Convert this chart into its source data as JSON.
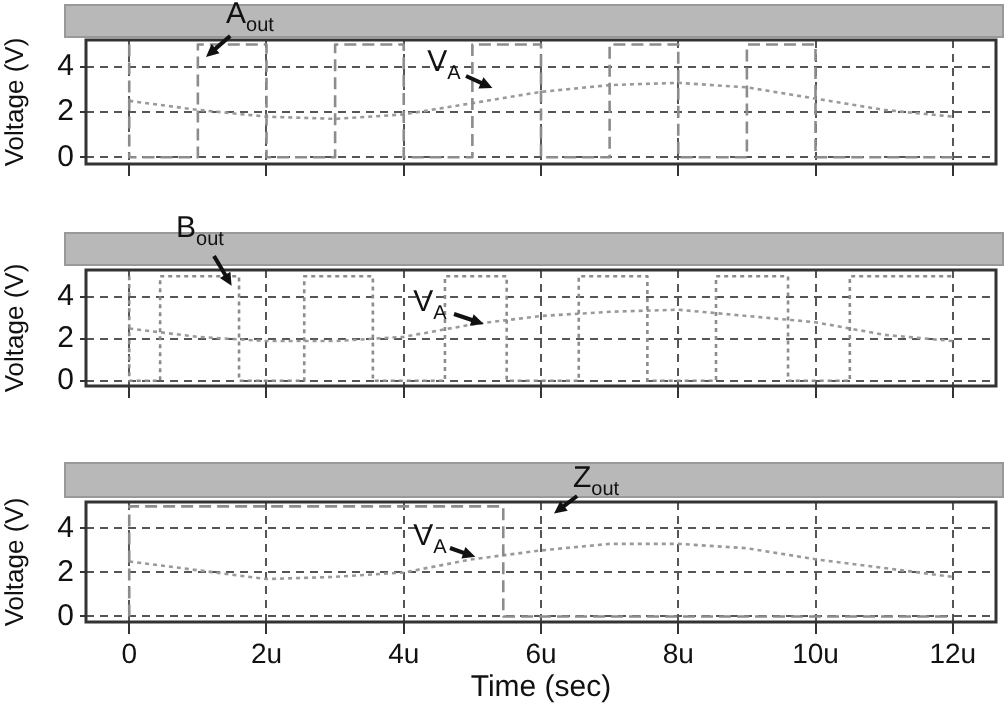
{
  "chart_data": [
    {
      "type": "line",
      "ylabel": "Voltage (V)",
      "xlim": [
        -0.63,
        12.63
      ],
      "ylim": [
        -0.3,
        5.2
      ],
      "tick_labels": "y",
      "grid": true,
      "xticks": [
        0,
        2,
        4,
        6,
        8,
        10,
        12
      ],
      "yticks": [
        0,
        2,
        4
      ],
      "series": [
        {
          "type": "step",
          "color": "#8c8c8c",
          "line_style": "dashed",
          "x": [
            0,
            1,
            2,
            3,
            4,
            5,
            6,
            7,
            8,
            9,
            10,
            11,
            12
          ],
          "values": [
            5,
            0,
            5,
            0,
            5,
            0,
            5,
            0,
            5,
            0,
            5,
            0,
            0
          ]
        },
        {
          "type": "line",
          "color": "#9a9a9a",
          "line_style": "dotted",
          "x": [
            0,
            1,
            2,
            3,
            4,
            5,
            6,
            7,
            8,
            9,
            10,
            11,
            12
          ],
          "values": [
            2.5,
            2.1,
            1.8,
            1.7,
            1.9,
            2.4,
            2.9,
            3.2,
            3.3,
            3.1,
            2.6,
            2.1,
            1.8
          ]
        }
      ],
      "annotations": [
        "A$_{out}$",
        "V$_{A}$"
      ]
    },
    {
      "type": "line",
      "ylabel": "Voltage (V)",
      "xlim": [
        -0.63,
        12.63
      ],
      "ylim": [
        -0.25,
        5.3
      ],
      "tick_labels": "y",
      "grid": true,
      "xticks": [
        0,
        2,
        4,
        6,
        8,
        10,
        12
      ],
      "yticks": [
        0,
        2,
        4
      ],
      "series": [
        {
          "type": "step",
          "color": "#8c8c8c",
          "line_style": "dotted",
          "x": [
            0,
            0.45,
            1.6,
            2.55,
            3.55,
            4.6,
            5.5,
            6.55,
            7.55,
            8.55,
            9.6,
            10.5,
            11.6,
            12
          ],
          "values": [
            5,
            0,
            5,
            0,
            5,
            0,
            5,
            0,
            5,
            0,
            5,
            0,
            5,
            5
          ]
        },
        {
          "type": "line",
          "color": "#9a9a9a",
          "line_style": "dotted",
          "x": [
            0,
            1,
            2,
            3,
            4,
            5,
            6,
            7,
            8,
            9,
            10,
            11,
            12
          ],
          "values": [
            2.5,
            2.1,
            1.9,
            1.9,
            2.1,
            2.7,
            3.1,
            3.3,
            3.4,
            3.1,
            2.8,
            2.2,
            1.9
          ]
        }
      ],
      "annotations": [
        "B$_{out}$",
        "V$_{A}$"
      ]
    },
    {
      "type": "line",
      "ylabel": "Voltage (V)",
      "xlabel": "Time (sec)",
      "xlim": [
        -0.63,
        12.63
      ],
      "ylim": [
        -0.25,
        5.2
      ],
      "grid": true,
      "xticks": [
        0,
        {
          "value": 2,
          "label": "2u"
        },
        {
          "value": 4,
          "label": "4u"
        },
        {
          "value": 6,
          "label": "6u"
        },
        {
          "value": 8,
          "label": "8u"
        },
        {
          "value": 10,
          "label": "10u"
        },
        {
          "value": 12,
          "label": "12u"
        }
      ],
      "yticks": [
        0,
        2,
        4
      ],
      "series": [
        {
          "type": "step",
          "color": "#8c8c8c",
          "line_style": "dashed",
          "x": [
            0,
            5.45,
            6,
            12
          ],
          "values": [
            0,
            5,
            0,
            0
          ]
        },
        {
          "type": "line",
          "color": "#9a9a9a",
          "line_style": "dotted",
          "x": [
            0,
            1,
            2,
            3,
            4,
            5,
            6,
            7,
            8,
            9,
            10,
            11,
            12
          ],
          "values": [
            2.5,
            2.1,
            1.7,
            1.8,
            2.0,
            2.6,
            3.0,
            3.3,
            3.3,
            3.1,
            2.6,
            2.2,
            1.8
          ]
        }
      ],
      "annotations": [
        "Z$_{out}$",
        "V$_{A}$"
      ]
    }
  ]
}
